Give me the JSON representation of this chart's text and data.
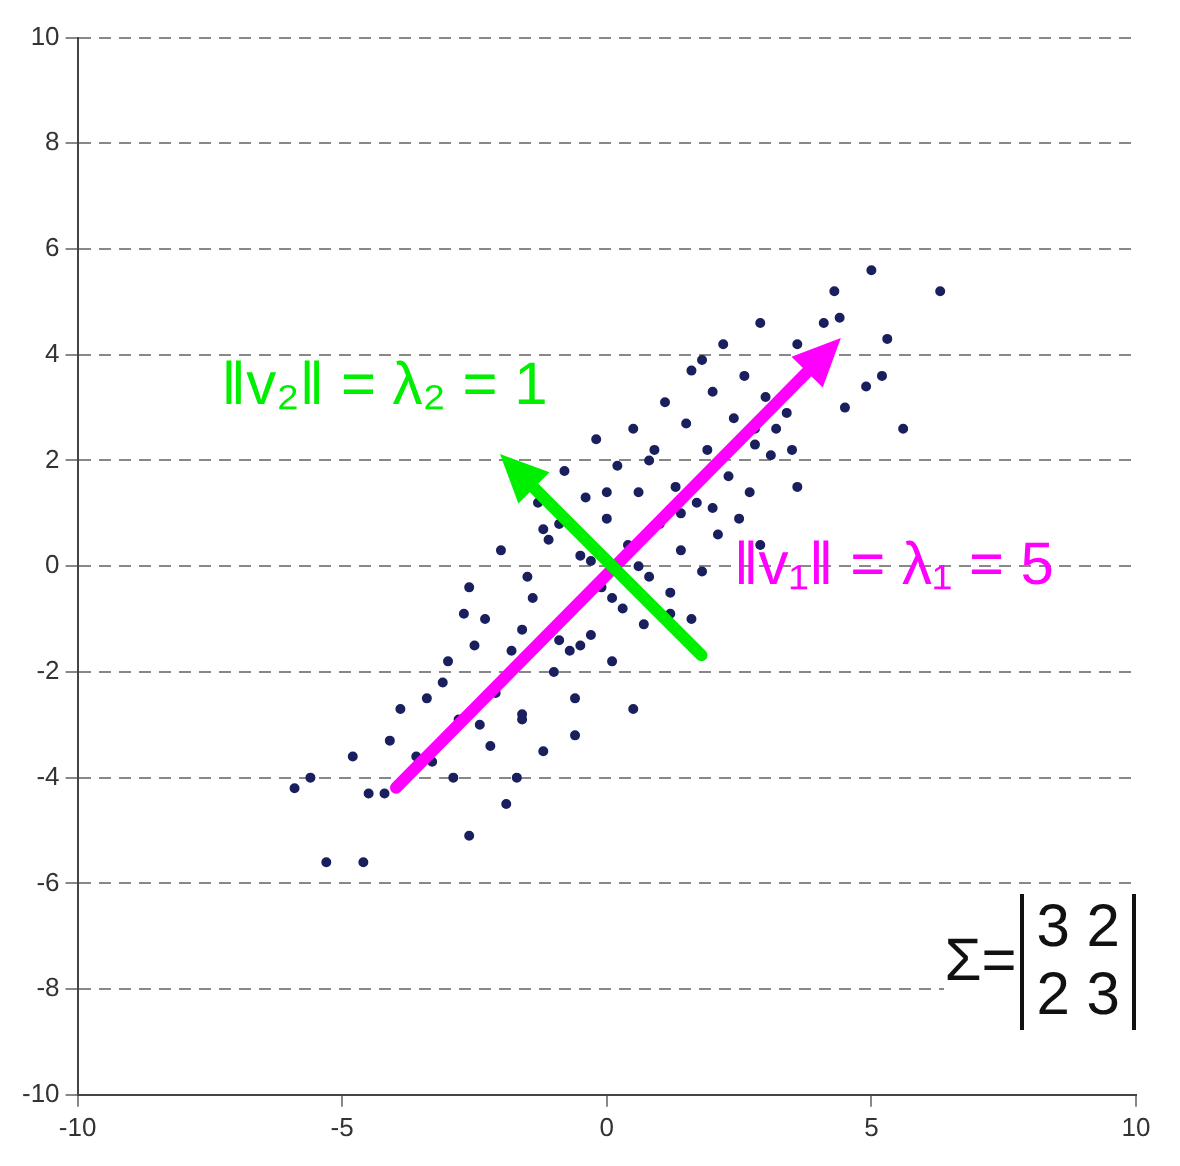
{
  "chart_data": {
    "type": "scatter",
    "xlim": [
      -10,
      10
    ],
    "xticks": [
      -10,
      -5,
      0,
      5,
      10
    ],
    "ylim": [
      -10,
      10
    ],
    "yticks": [
      -10,
      -8,
      -6,
      -4,
      -2,
      0,
      2,
      4,
      6,
      8,
      10
    ],
    "grid": "y",
    "legend": false,
    "marker": "circle",
    "series": [
      {
        "color": "#1a1f5e",
        "x": [
          6.3,
          5.0,
          5.3,
          5.2,
          5.6,
          4.3,
          4.4,
          4.1,
          3.6,
          4.5,
          4.9,
          -5.9,
          -5.3,
          -4.6,
          -2.6,
          -2.6,
          -3.6,
          -4.5,
          -4.8,
          -5.6,
          -4.1,
          -3.3,
          -3.1,
          -2.8,
          -2.2,
          -1.9,
          -3.9,
          -3.0,
          -2.5,
          -2.1,
          -1.6,
          -1.2,
          -2.7,
          -2.3,
          -1.8,
          -1.4,
          -1.0,
          -0.6,
          -2.0,
          -1.5,
          -1.1,
          -0.7,
          -0.3,
          0.1,
          -1.3,
          -0.9,
          -0.5,
          -0.1,
          0.3,
          0.7,
          -0.8,
          -0.4,
          0.0,
          0.4,
          0.8,
          1.2,
          1.6,
          -0.2,
          0.2,
          0.6,
          1.0,
          1.4,
          1.8,
          0.5,
          0.9,
          1.3,
          1.7,
          2.1,
          2.5,
          1.1,
          1.5,
          1.9,
          2.3,
          2.7,
          3.1,
          1.6,
          2.0,
          2.4,
          2.8,
          3.2,
          3.6,
          2.2,
          2.6,
          3.0,
          3.4,
          2.9,
          0.1,
          0.5,
          -0.6,
          -1.7,
          -2.9,
          -1.2,
          0.8,
          2.0,
          2.8,
          1.8,
          -0.9,
          -3.4,
          -1.6,
          0.0,
          -0.3,
          1.2,
          2.9,
          3.5,
          -1.6,
          -2.4,
          -4.2,
          0.6,
          1.4,
          -0.5
        ],
        "values": [
          5.2,
          5.6,
          4.3,
          3.6,
          2.6,
          5.2,
          4.7,
          4.6,
          4.2,
          3.0,
          3.4,
          -4.2,
          -5.6,
          -5.6,
          -5.1,
          -0.4,
          -3.6,
          -4.3,
          -3.6,
          -4.0,
          -3.3,
          -3.7,
          -2.2,
          -2.9,
          -3.4,
          -4.5,
          -2.7,
          -1.8,
          -1.5,
          -2.4,
          -2.9,
          -3.5,
          -0.9,
          -1.0,
          -1.6,
          -0.6,
          -2.0,
          -2.5,
          0.3,
          -0.2,
          0.5,
          -1.6,
          -1.3,
          -1.8,
          1.2,
          0.8,
          0.2,
          -0.4,
          -0.8,
          -1.1,
          1.8,
          1.3,
          0.9,
          0.4,
          -0.2,
          -0.5,
          -1.0,
          2.4,
          1.9,
          1.4,
          0.8,
          0.3,
          -0.1,
          2.6,
          2.2,
          1.5,
          1.2,
          0.6,
          0.9,
          3.1,
          2.7,
          2.2,
          1.7,
          1.4,
          2.1,
          3.7,
          3.3,
          2.8,
          2.3,
          2.6,
          1.5,
          4.2,
          3.6,
          3.2,
          2.9,
          4.6,
          -0.6,
          -2.7,
          -3.2,
          -4.0,
          -4.0,
          0.7,
          2.0,
          1.1,
          2.6,
          3.9,
          -1.4,
          -2.5,
          -2.8,
          1.4,
          0.1,
          -0.9,
          0.4,
          2.2,
          -1.2,
          -3.0,
          -4.3,
          0.0,
          1.0,
          -1.5
        ]
      }
    ],
    "annotations": [
      "‖v₁‖ = λ₁ = 5",
      "‖v₂‖ = λ₂ = 1",
      "Σ=",
      "3 2",
      "2 3"
    ]
  }
}
